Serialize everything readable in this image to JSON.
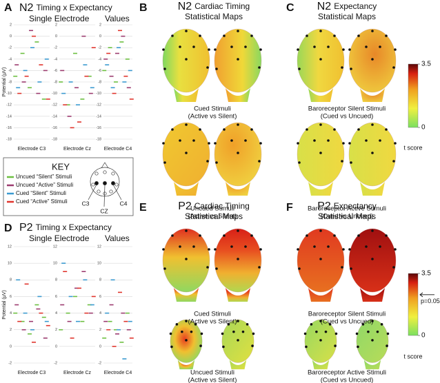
{
  "panel_a": {
    "label": "A",
    "title_big": "N2",
    "title_rest": "Timing x Expectancy",
    "subtitle": "Single Electrode",
    "subtitle2": "Values"
  },
  "panel_b": {
    "label": "B",
    "title_big": "N2",
    "title_rest": "Cardiac Timing",
    "subtitle": "Statistical Maps",
    "captions": [
      [
        "Cued Stimuli",
        "(Active vs Silent)"
      ],
      [
        "Uncued Stimuli",
        "(Active vs Silent)"
      ]
    ]
  },
  "panel_c": {
    "label": "C",
    "title_big": "N2",
    "title_rest": "Expectancy",
    "subtitle": "Statistical Maps",
    "captions": [
      [
        "Baroreceptor Silent Stimuli",
        "(Cued vs Uncued)"
      ],
      [
        "Baroreceptor Active Stimuli",
        "(Cued vs Uncued)"
      ]
    ]
  },
  "panel_d": {
    "label": "D",
    "title_big": "P2",
    "title_rest": "Timing x Expectancy",
    "subtitle": "Single Electrode",
    "subtitle2": "Values"
  },
  "panel_e": {
    "label": "E",
    "title_big": "P2",
    "title_rest": "Cardiac Timing",
    "subtitle": "Statistical Maps",
    "captions": [
      [
        "Cued Stimuli",
        "(Active vs Silent)"
      ],
      [
        "Uncued Stimuli",
        "(Active vs Silent)"
      ]
    ]
  },
  "panel_f": {
    "label": "F",
    "title_big": "P2",
    "title_rest": "Expectancy",
    "subtitle": "Statistical Maps",
    "captions": [
      [
        "Baroreceptor Silent Stimuli",
        "(Cued vs Uncued)"
      ],
      [
        "Baroreceptor Active Stimuli",
        "(Cued vs Uncued)"
      ]
    ]
  },
  "key": {
    "title": "KEY",
    "electrodes": [
      "C3",
      "CZ",
      "C4"
    ]
  },
  "colorbars": [
    {
      "lim": [
        0,
        3.5
      ],
      "ticks": [
        0,
        3.5
      ],
      "label": "t score"
    },
    {
      "lim": [
        0,
        3.5
      ],
      "ticks": [
        0,
        3.5
      ],
      "label": "t score",
      "annotation": "p=0.05",
      "threshold": 2.3
    }
  ],
  "chart_data": [
    {
      "type": "dash",
      "ylabel": "Potential (μV)",
      "xlabel": "Electrode C3",
      "ylim": [
        -18,
        2
      ],
      "yticks": [
        -18,
        -16,
        -14,
        -12,
        -10,
        -8,
        -6,
        -4,
        -2,
        0,
        2
      ],
      "grid": true,
      "series": [
        {
          "name": "Uncued “Silent” Stimuli",
          "color": "#6cbf3f",
          "values": [
            -7,
            -3,
            -9,
            -1,
            -11
          ]
        },
        {
          "name": "Uncued “Active” Stimuli",
          "color": "#9b3a6e",
          "values": [
            -5,
            -8,
            1,
            -10,
            -6
          ]
        },
        {
          "name": "Cued “Silent” Stimuli",
          "color": "#3a9ad0",
          "values": [
            -9,
            -6,
            -2,
            -8,
            -4
          ]
        },
        {
          "name": "Cued “Active” Stimuli",
          "color": "#e0342c",
          "values": [
            -10,
            -7,
            0,
            -5,
            -11
          ]
        }
      ]
    },
    {
      "type": "dash",
      "xlabel": "Electrode Cz",
      "ylim": [
        -18,
        2
      ],
      "yticks": [
        -18,
        -16,
        -14,
        -12,
        -10,
        -8,
        -6,
        -4,
        -2,
        0,
        2
      ],
      "grid": true,
      "series": [
        {
          "color": "#6cbf3f",
          "values": [
            -8,
            -12,
            -3,
            -11,
            -7
          ]
        },
        {
          "color": "#9b3a6e",
          "values": [
            -6,
            -14,
            -9,
            0,
            -10
          ]
        },
        {
          "color": "#3a9ad0",
          "values": [
            -10,
            -8,
            -12,
            -5,
            -9
          ]
        },
        {
          "color": "#e0342c",
          "values": [
            -12,
            -16,
            -15,
            -7,
            -2
          ]
        }
      ]
    },
    {
      "type": "dash",
      "xlabel": "Electrode C4",
      "ylim": [
        -18,
        2
      ],
      "yticks": [
        -18,
        -16,
        -14,
        -12,
        -10,
        -8,
        -6,
        -4,
        -2,
        0,
        2
      ],
      "grid": true,
      "series": [
        {
          "color": "#6cbf3f",
          "values": [
            -6,
            -2,
            -8,
            -1,
            -4
          ]
        },
        {
          "color": "#9b3a6e",
          "values": [
            -4,
            -7,
            -3,
            0,
            -9
          ]
        },
        {
          "color": "#3a9ad0",
          "values": [
            -5,
            -9,
            -2,
            -8,
            -6
          ]
        },
        {
          "color": "#e0342c",
          "values": [
            -3,
            -10,
            1,
            -7,
            -11
          ]
        }
      ]
    },
    {
      "type": "dash",
      "ylabel": "Potential (μV)",
      "xlabel": "Electrode C3",
      "ylim": [
        -2,
        12
      ],
      "yticks": [
        -2,
        0,
        2,
        4,
        6,
        8,
        10,
        12
      ],
      "grid": true,
      "series": [
        {
          "color": "#6cbf3f",
          "values": [
            4,
            3,
            1.5,
            5,
            3.5
          ]
        },
        {
          "color": "#9b3a6e",
          "values": [
            5,
            2,
            3,
            4.5,
            1
          ]
        },
        {
          "color": "#3a9ad0",
          "values": [
            8,
            4,
            2,
            6,
            3
          ]
        },
        {
          "color": "#e0342c",
          "values": [
            3,
            7.5,
            0.5,
            4,
            2.5
          ]
        }
      ]
    },
    {
      "type": "dash",
      "xlabel": "Electrode Cz",
      "ylim": [
        -2,
        12
      ],
      "yticks": [
        -2,
        0,
        2,
        4,
        6,
        8,
        10,
        12
      ],
      "grid": true,
      "series": [
        {
          "color": "#6cbf3f",
          "values": [
            2,
            4,
            6,
            3,
            5
          ]
        },
        {
          "color": "#9b3a6e",
          "values": [
            5,
            3,
            7,
            9,
            4
          ]
        },
        {
          "color": "#3a9ad0",
          "values": [
            10,
            6,
            3,
            8,
            5
          ]
        },
        {
          "color": "#e0342c",
          "values": [
            9,
            1,
            7,
            4,
            6
          ]
        }
      ]
    },
    {
      "type": "dash",
      "xlabel": "Electrode C4",
      "ylim": [
        -2,
        12
      ],
      "yticks": [
        -2,
        0,
        2,
        4,
        6,
        8,
        10,
        12
      ],
      "grid": true,
      "series": [
        {
          "color": "#6cbf3f",
          "values": [
            1,
            3,
            2,
            0.5,
            4
          ]
        },
        {
          "color": "#9b3a6e",
          "values": [
            3,
            5,
            1.5,
            4,
            2
          ]
        },
        {
          "color": "#3a9ad0",
          "values": [
            4,
            8,
            2,
            -1.5,
            3
          ]
        },
        {
          "color": "#e0342c",
          "values": [
            2,
            0,
            6.5,
            3,
            1
          ]
        }
      ]
    }
  ]
}
